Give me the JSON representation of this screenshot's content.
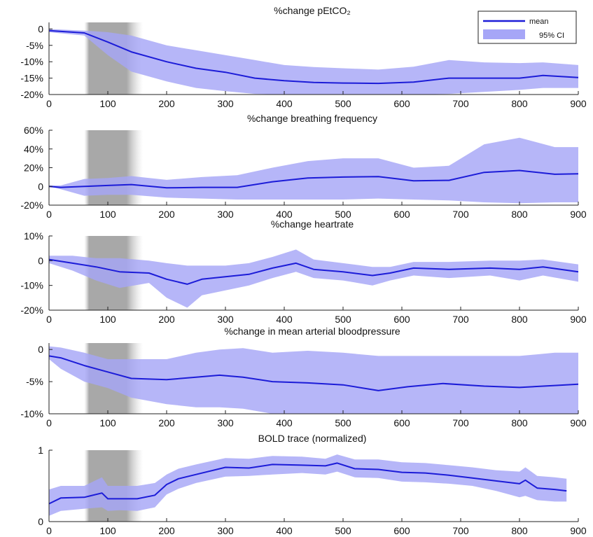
{
  "figure": {
    "x_ticks": [
      0,
      100,
      200,
      300,
      400,
      500,
      600,
      700,
      800,
      900
    ],
    "xlim": [
      0,
      900
    ],
    "shaded_interval": [
      60,
      160
    ],
    "colors": {
      "mean_line": "#1c1cd8",
      "ci_band": "#a6a6f7",
      "shade": "#9a9a9a"
    },
    "legend": {
      "mean_label": "mean",
      "ci_label": "95% CI",
      "placement": "top-right of first panel"
    }
  },
  "chart_data": [
    {
      "type": "line",
      "title": "%change pEtCO₂",
      "xlim": [
        0,
        900
      ],
      "ylim": [
        -20,
        2
      ],
      "y_ticks": [
        {
          "v": 0,
          "label": "0"
        },
        {
          "v": -5,
          "label": "-5%"
        },
        {
          "v": -10,
          "label": "-10%"
        },
        {
          "v": -15,
          "label": "-15%"
        },
        {
          "v": -20,
          "label": "-20%"
        }
      ],
      "x": [
        0,
        60,
        100,
        140,
        200,
        250,
        300,
        350,
        400,
        450,
        500,
        560,
        620,
        680,
        740,
        800,
        840,
        900
      ],
      "series": [
        {
          "name": "mean",
          "values": [
            -0.5,
            -1.2,
            -4,
            -7,
            -10,
            -12,
            -13.2,
            -15,
            -15.8,
            -16.3,
            -16.5,
            -16.6,
            -16.2,
            -15,
            -15,
            -15,
            -14.2,
            -14.8
          ]
        },
        {
          "name": "95% CI",
          "lower": [
            -1,
            -2,
            -8,
            -13,
            -16,
            -18,
            -19,
            -19.8,
            -20.4,
            -20.6,
            -21,
            -21,
            -20.8,
            -19.8,
            -19.2,
            -18.6,
            -18,
            -18
          ],
          "upper": [
            0,
            -0.5,
            -1,
            -2,
            -5,
            -6.5,
            -8,
            -9.5,
            -11,
            -11.6,
            -12,
            -12.4,
            -11.5,
            -9.5,
            -10.2,
            -10.4,
            -10.2,
            -11
          ]
        }
      ]
    },
    {
      "type": "line",
      "title": "%change breathing frequency",
      "xlim": [
        0,
        900
      ],
      "ylim": [
        -20,
        60
      ],
      "y_ticks": [
        {
          "v": 60,
          "label": "60%"
        },
        {
          "v": 40,
          "label": "40%"
        },
        {
          "v": 20,
          "label": "20%"
        },
        {
          "v": 0,
          "label": "0"
        },
        {
          "v": -20,
          "label": "-20%"
        }
      ],
      "x": [
        0,
        20,
        60,
        100,
        140,
        200,
        260,
        320,
        380,
        440,
        500,
        560,
        620,
        680,
        740,
        800,
        860,
        900
      ],
      "series": [
        {
          "name": "mean",
          "values": [
            0,
            -1,
            0,
            1,
            2,
            -1.5,
            -1,
            -1,
            5,
            9,
            10,
            10.5,
            6,
            6.5,
            15,
            17,
            13,
            13.5
          ]
        },
        {
          "name": "95% CI",
          "lower": [
            0,
            -3,
            -10,
            -9,
            -9,
            -12,
            -13,
            -14,
            -14,
            -14,
            -14,
            -13,
            -14,
            -15,
            -17,
            -18,
            -17,
            -17
          ],
          "upper": [
            1,
            1,
            8,
            9,
            11,
            7,
            10,
            12,
            20,
            27,
            30,
            30,
            20,
            22,
            45,
            52,
            42,
            42
          ]
        }
      ]
    },
    {
      "type": "line",
      "title": "%change heartrate",
      "xlim": [
        0,
        900
      ],
      "ylim": [
        -20,
        10
      ],
      "y_ticks": [
        {
          "v": 10,
          "label": "10%"
        },
        {
          "v": 0,
          "label": "0"
        },
        {
          "v": -10,
          "label": "-10%"
        },
        {
          "v": -20,
          "label": "-20%"
        }
      ],
      "x": [
        0,
        40,
        80,
        120,
        170,
        200,
        235,
        260,
        300,
        340,
        380,
        420,
        450,
        500,
        550,
        580,
        620,
        680,
        750,
        800,
        840,
        900
      ],
      "series": [
        {
          "name": "mean",
          "values": [
            0.5,
            -1,
            -2.5,
            -4.5,
            -5,
            -7.5,
            -9.5,
            -7.5,
            -6.5,
            -5.5,
            -3,
            -1,
            -3.5,
            -4.5,
            -6,
            -5,
            -3,
            -3.5,
            -3,
            -3.5,
            -2.5,
            -4.5
          ]
        },
        {
          "name": "95% CI",
          "lower": [
            -1,
            -4,
            -8,
            -11,
            -9,
            -15,
            -19,
            -14,
            -12,
            -10,
            -7,
            -4.5,
            -7,
            -8,
            -10,
            -8,
            -6,
            -7,
            -6,
            -8,
            -6,
            -8.5
          ]
        },
        {
          "name": "band-upper",
          "upper": [
            2,
            2,
            1,
            1,
            0,
            -1,
            -2,
            -2,
            -2,
            -1,
            1.5,
            4.5,
            0.5,
            -1,
            -2.5,
            -2.5,
            -0.5,
            -0.5,
            0,
            0,
            0.5,
            -1.5
          ]
        }
      ]
    },
    {
      "type": "line",
      "title": "%change in mean arterial bloodpressure",
      "xlim": [
        0,
        900
      ],
      "ylim": [
        -10,
        1
      ],
      "y_ticks": [
        {
          "v": 0,
          "label": "0"
        },
        {
          "v": -5,
          "label": "-5%"
        },
        {
          "v": -10,
          "label": "-10%"
        }
      ],
      "x": [
        0,
        20,
        60,
        100,
        140,
        200,
        250,
        290,
        330,
        380,
        440,
        500,
        560,
        610,
        670,
        740,
        800,
        860,
        900
      ],
      "series": [
        {
          "name": "mean",
          "values": [
            -1,
            -1.3,
            -2.5,
            -3.5,
            -4.5,
            -4.7,
            -4.3,
            -4,
            -4.3,
            -5,
            -5.2,
            -5.5,
            -6.4,
            -5.8,
            -5.3,
            -5.7,
            -5.9,
            -5.6,
            -5.4
          ]
        },
        {
          "name": "95% CI",
          "lower": [
            -1.5,
            -3,
            -5,
            -6,
            -7.5,
            -8.5,
            -9,
            -9,
            -9.2,
            -10,
            -10.1,
            -10.5,
            -12,
            -11.5,
            -10.2,
            -10.2,
            -10.2,
            -10,
            -10
          ]
        },
        {
          "name": "band-upper",
          "upper": [
            0.5,
            0.3,
            -0.5,
            -1.5,
            -1.5,
            -1.5,
            -0.5,
            0,
            0.2,
            -0.5,
            -0.2,
            -0.5,
            -1,
            -1,
            -1,
            -1,
            -1,
            -0.5,
            -0.5
          ]
        }
      ]
    },
    {
      "type": "line",
      "title": "BOLD trace (normalized)",
      "xlim": [
        0,
        900
      ],
      "ylim": [
        0,
        1
      ],
      "y_ticks": [
        {
          "v": 1,
          "label": "1"
        },
        {
          "v": 0,
          "label": "0"
        }
      ],
      "x": [
        0,
        20,
        60,
        90,
        100,
        120,
        150,
        180,
        200,
        220,
        250,
        300,
        340,
        380,
        430,
        470,
        490,
        520,
        560,
        600,
        640,
        680,
        720,
        760,
        800,
        810,
        830,
        860,
        880
      ],
      "series": [
        {
          "name": "mean",
          "values": [
            0.25,
            0.33,
            0.34,
            0.4,
            0.32,
            0.32,
            0.32,
            0.37,
            0.52,
            0.6,
            0.66,
            0.76,
            0.75,
            0.8,
            0.79,
            0.78,
            0.82,
            0.74,
            0.73,
            0.69,
            0.68,
            0.65,
            0.61,
            0.57,
            0.53,
            0.58,
            0.47,
            0.45,
            0.43
          ]
        },
        {
          "name": "95% CI",
          "lower": [
            0.08,
            0.15,
            0.18,
            0.2,
            0.15,
            0.16,
            0.15,
            0.2,
            0.38,
            0.46,
            0.54,
            0.63,
            0.64,
            0.66,
            0.68,
            0.66,
            0.7,
            0.62,
            0.61,
            0.56,
            0.55,
            0.53,
            0.5,
            0.43,
            0.34,
            0.36,
            0.3,
            0.28,
            0.28
          ]
        },
        {
          "name": "band-upper",
          "upper": [
            0.45,
            0.5,
            0.5,
            0.62,
            0.5,
            0.5,
            0.5,
            0.54,
            0.66,
            0.74,
            0.8,
            0.89,
            0.88,
            0.92,
            0.91,
            0.88,
            0.94,
            0.87,
            0.87,
            0.83,
            0.82,
            0.79,
            0.76,
            0.72,
            0.7,
            0.76,
            0.64,
            0.62,
            0.6
          ]
        }
      ]
    }
  ]
}
